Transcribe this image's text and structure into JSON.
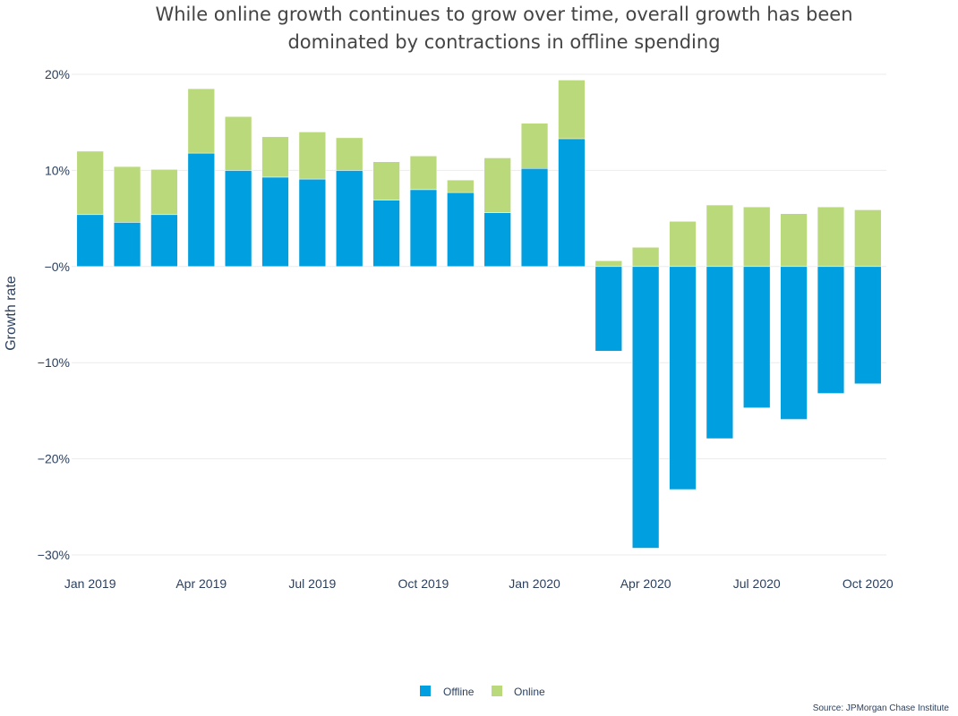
{
  "chart_data": {
    "type": "bar",
    "barmode": "relative",
    "title_lines": [
      "While online growth continues to grow over time, overall growth has been",
      "dominated by contractions in offline spending"
    ],
    "xlabel": "",
    "ylabel": "Growth rate",
    "ylim": [
      -30,
      20
    ],
    "ytick_values": [
      20,
      10,
      0,
      -10,
      -20,
      -30
    ],
    "ytick_labels": [
      "20%",
      "10%",
      "−0%",
      "−10%",
      "−20%",
      "−30%"
    ],
    "categories": [
      "2019-01",
      "2019-02",
      "2019-03",
      "2019-04",
      "2019-05",
      "2019-06",
      "2019-07",
      "2019-08",
      "2019-09",
      "2019-10",
      "2019-11",
      "2019-12",
      "2020-01",
      "2020-02",
      "2020-03",
      "2020-04",
      "2020-05",
      "2020-06",
      "2020-07",
      "2020-08",
      "2020-09",
      "2020-10"
    ],
    "xtick_index": [
      0,
      3,
      6,
      9,
      12,
      15,
      18,
      21
    ],
    "xtick_labels": [
      "Jan 2019",
      "Apr 2019",
      "Jul 2019",
      "Oct 2019",
      "Jan 2020",
      "Apr 2020",
      "Jul 2020",
      "Oct 2020"
    ],
    "series": [
      {
        "name": "Offline",
        "color": "#009fdf",
        "values": [
          5.4,
          4.6,
          5.4,
          11.8,
          10.0,
          9.3,
          9.1,
          10.0,
          6.9,
          8.0,
          7.7,
          5.6,
          10.2,
          13.3,
          -8.8,
          -29.3,
          -23.2,
          -17.9,
          -14.7,
          -15.9,
          -13.2,
          -12.2
        ]
      },
      {
        "name": "Online",
        "color": "#bad97a",
        "values": [
          6.6,
          5.8,
          4.7,
          6.7,
          5.6,
          4.2,
          4.9,
          3.4,
          4.0,
          3.5,
          1.3,
          5.7,
          4.7,
          6.1,
          0.6,
          2.0,
          4.7,
          6.4,
          6.2,
          5.5,
          6.2,
          5.9
        ]
      }
    ],
    "grid": true,
    "legend": {
      "placement": "bottom-center",
      "items": [
        "Offline",
        "Online"
      ]
    },
    "source": "Source: JPMorgan Chase Institute"
  }
}
